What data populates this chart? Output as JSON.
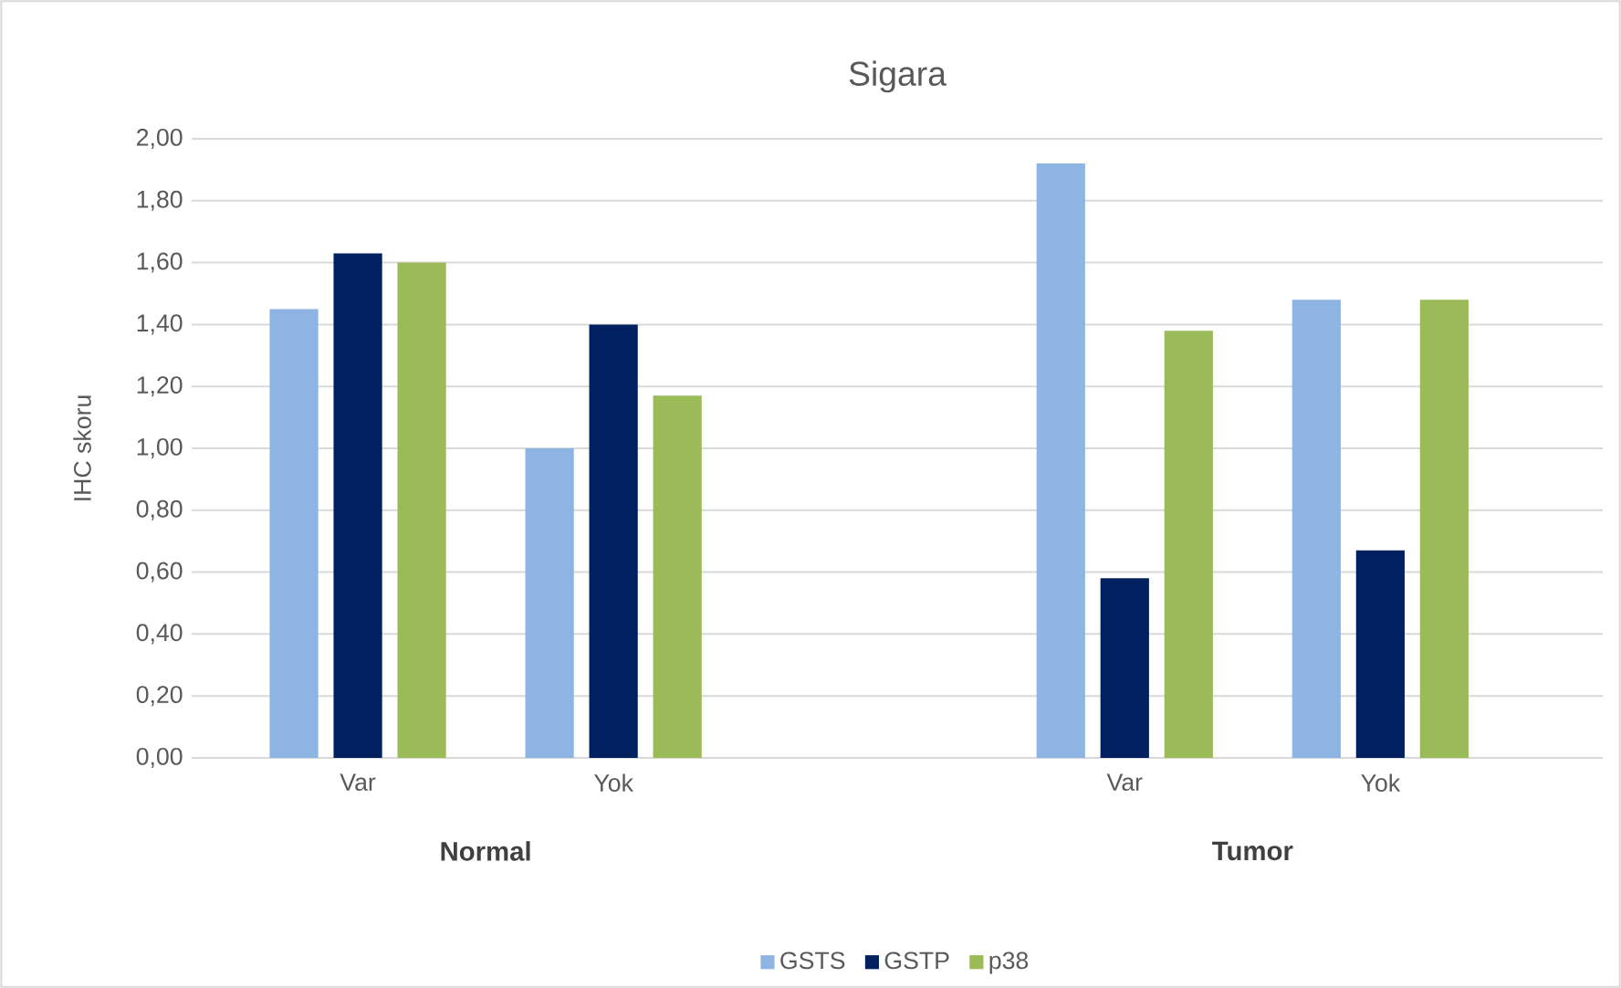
{
  "chart_data": {
    "type": "bar",
    "title": "Sigara",
    "ylabel": "IHC skoru",
    "categories": [
      "Var",
      "Yok",
      null,
      "Var",
      "Yok"
    ],
    "series": [
      {
        "name": "GSTS",
        "color": "#8eb4e3",
        "values": [
          1.45,
          1.0,
          null,
          1.92,
          1.48
        ]
      },
      {
        "name": "GSTP",
        "color": "#002060",
        "values": [
          1.63,
          1.4,
          null,
          0.58,
          0.67
        ]
      },
      {
        "name": "p38",
        "color": "#9bbb59",
        "values": [
          1.6,
          1.17,
          null,
          1.38,
          1.48
        ]
      }
    ],
    "ylim": [
      0,
      2
    ],
    "yticks": [
      {
        "value": 0,
        "label": "0,00"
      },
      {
        "value": 0.2,
        "label": "0,20"
      },
      {
        "value": 0.4,
        "label": "0,40"
      },
      {
        "value": 0.6,
        "label": "0,60"
      },
      {
        "value": 0.8,
        "label": "0,80"
      },
      {
        "value": 1.0,
        "label": "1,00"
      },
      {
        "value": 1.2,
        "label": "1,20"
      },
      {
        "value": 1.4,
        "label": "1,40"
      },
      {
        "value": 1.6,
        "label": "1,60"
      },
      {
        "value": 1.8,
        "label": "1,80"
      },
      {
        "value": 2.0,
        "label": "2,00"
      }
    ],
    "annotations": [
      "Normal",
      "Tumor"
    ],
    "grid": "y",
    "legend": "bottom"
  }
}
